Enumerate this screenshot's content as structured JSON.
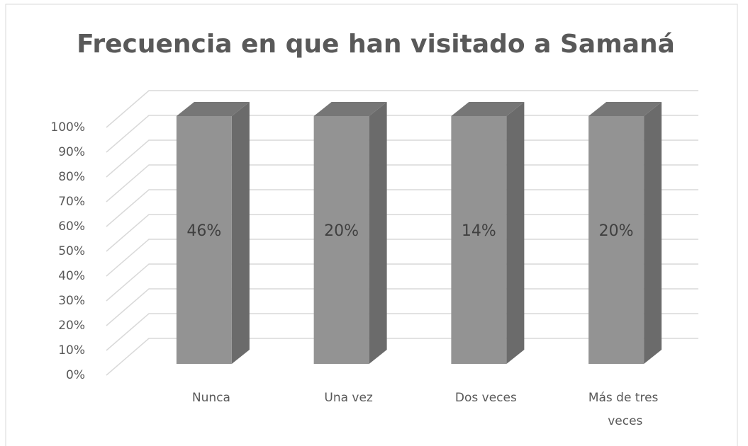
{
  "chart_data": {
    "type": "bar",
    "stacking": "percent",
    "title": "Frecuencia en que han visitado a Samaná",
    "categories": [
      "Nunca",
      "Una vez",
      "Dos veces",
      "Más de tres veces"
    ],
    "values": [
      46,
      20,
      14,
      20
    ],
    "value_labels": [
      "46%",
      "20%",
      "14%",
      "20%"
    ],
    "color": "#939393",
    "ylim": [
      0,
      100
    ],
    "yticks": [
      {
        "value": 0,
        "label": "0%"
      },
      {
        "value": 10,
        "label": "10%"
      },
      {
        "value": 20,
        "label": "20%"
      },
      {
        "value": 30,
        "label": "30%"
      },
      {
        "value": 40,
        "label": "40%"
      },
      {
        "value": 50,
        "label": "50%"
      },
      {
        "value": 60,
        "label": "60%"
      },
      {
        "value": 70,
        "label": "70%"
      },
      {
        "value": 80,
        "label": "80%"
      },
      {
        "value": 90,
        "label": "90%"
      },
      {
        "value": 100,
        "label": "100%"
      }
    ],
    "grid": true
  }
}
